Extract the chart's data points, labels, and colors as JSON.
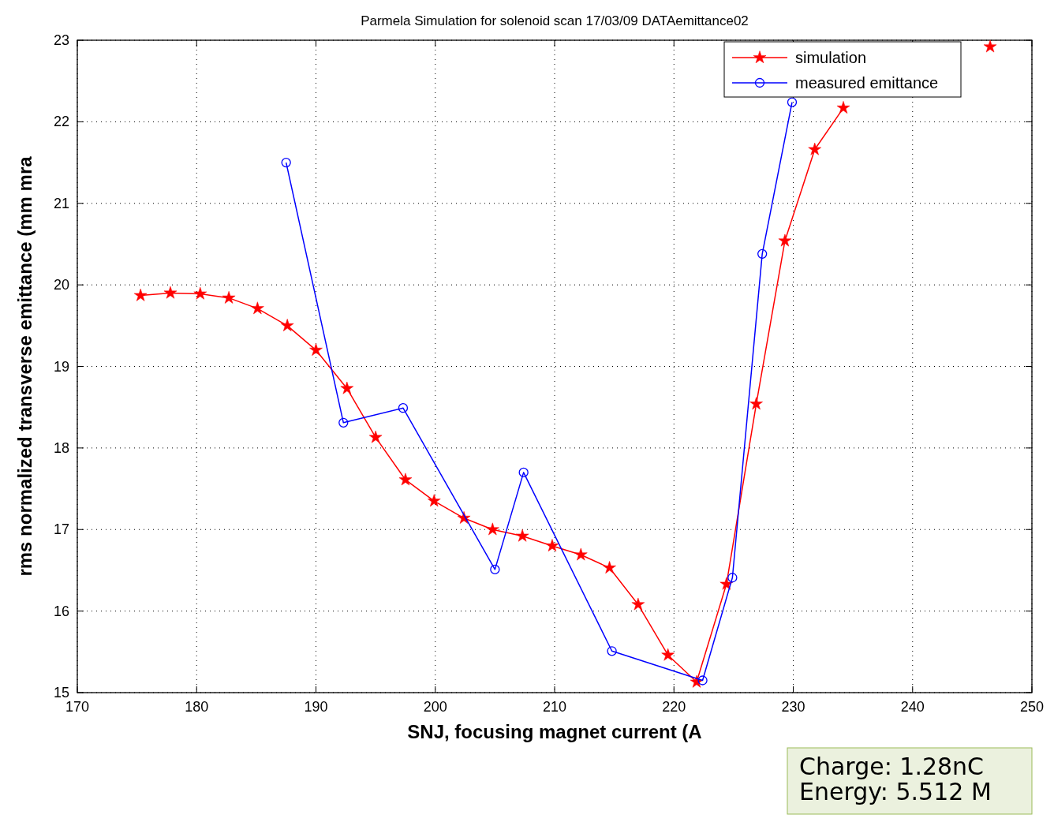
{
  "chart_data": {
    "type": "line",
    "title": "Parmela Simulation for solenoid scan 17/03/09 DATAemittance02",
    "xlabel": "SNJ, focusing magnet current (A",
    "ylabel": "rms normalized transverse emittance (mm mra",
    "xlim": [
      170,
      250
    ],
    "xticks": [
      170,
      180,
      190,
      200,
      210,
      220,
      230,
      240,
      250
    ],
    "ylim": [
      15,
      23
    ],
    "yticks": [
      15,
      16,
      17,
      18,
      19,
      20,
      21,
      22,
      23
    ],
    "grid": true,
    "legend": "top right",
    "series": [
      {
        "name": "simulation",
        "color": "#ff0000",
        "marker": "star",
        "x": [
          175.3,
          177.8,
          180.3,
          182.7,
          185.1,
          187.6,
          190.0,
          192.6,
          195.0,
          197.5,
          199.9,
          202.4,
          204.8,
          207.3,
          209.8,
          212.2,
          214.6,
          217.0,
          219.5,
          221.9,
          224.4,
          226.9,
          229.3,
          231.8,
          234.2,
          236.6,
          239.1,
          241.5,
          244.0,
          246.5
        ],
        "values": [
          19.87,
          19.9,
          19.89,
          19.84,
          19.71,
          19.5,
          19.2,
          18.73,
          18.13,
          17.61,
          17.35,
          17.14,
          17.0,
          16.92,
          16.8,
          16.69,
          16.53,
          16.08,
          15.46,
          15.13,
          16.33,
          18.54,
          20.54,
          21.66,
          22.17,
          null,
          null,
          null,
          null,
          22.92
        ]
      },
      {
        "name": "measured emittance",
        "color": "#0000ff",
        "marker": "circle",
        "x": [
          187.5,
          192.3,
          197.3,
          205.0,
          207.4,
          214.8,
          222.4,
          224.9,
          227.4,
          229.9
        ],
        "values": [
          21.5,
          18.31,
          18.49,
          16.51,
          17.7,
          15.51,
          15.15,
          16.41,
          20.38,
          22.24
        ]
      }
    ],
    "annotations": [
      "Charge: 1.28nC",
      "Energy: 5.512 M"
    ]
  }
}
